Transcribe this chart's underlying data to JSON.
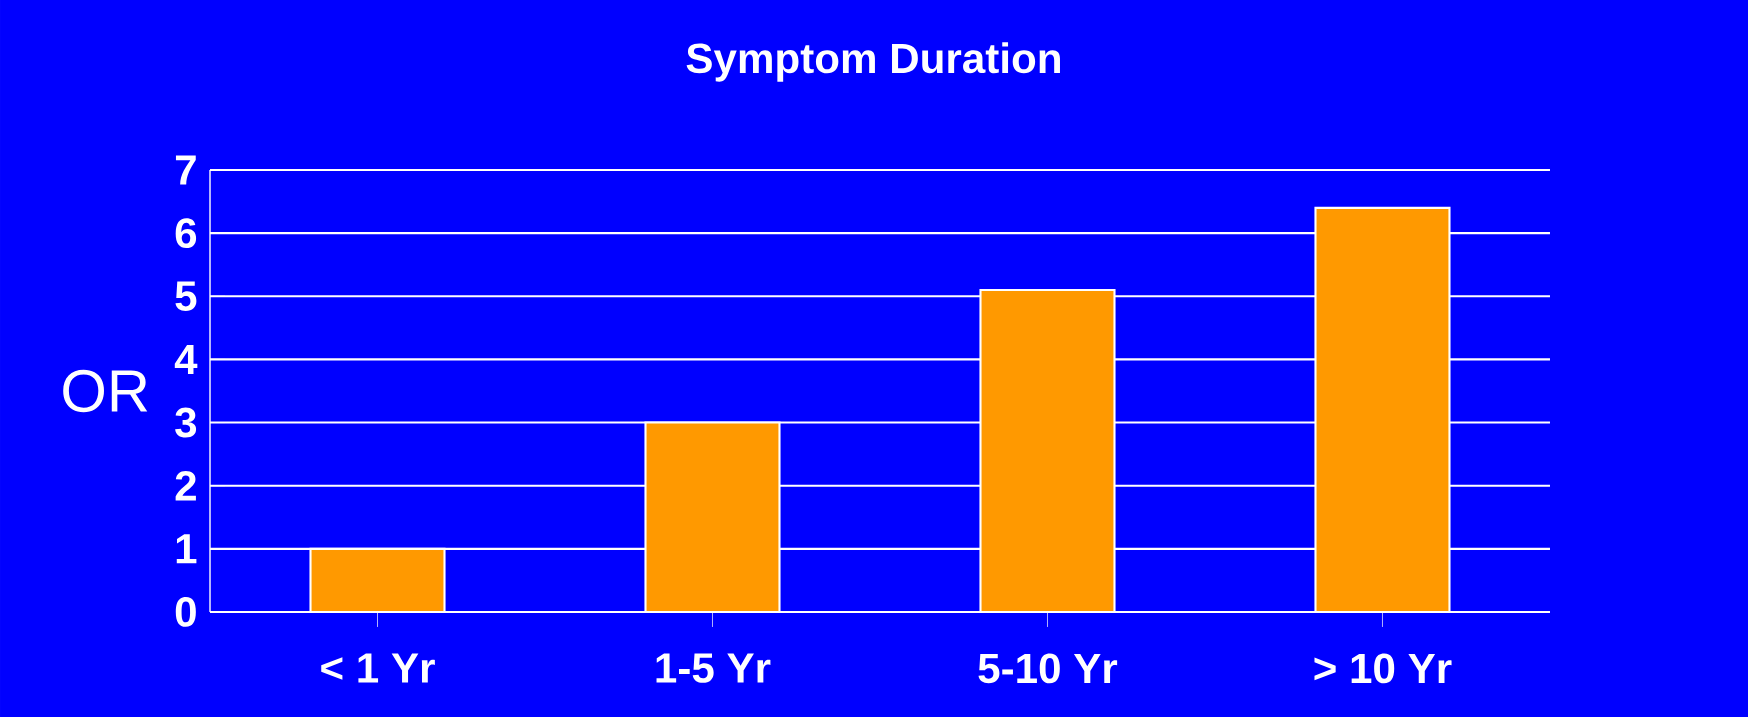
{
  "chart_data": {
    "type": "bar",
    "title": "Symptom Duration",
    "ylabel": "OR",
    "categories": [
      "< 1 Yr",
      "1-5 Yr",
      "5-10 Yr",
      "> 10 Yr"
    ],
    "values": [
      1.0,
      3.0,
      5.1,
      6.4
    ],
    "color": "#ff9900",
    "ylim": [
      0,
      7
    ],
    "yticks": [
      0,
      1,
      2,
      3,
      4,
      5,
      6,
      7
    ],
    "grid": "y"
  }
}
